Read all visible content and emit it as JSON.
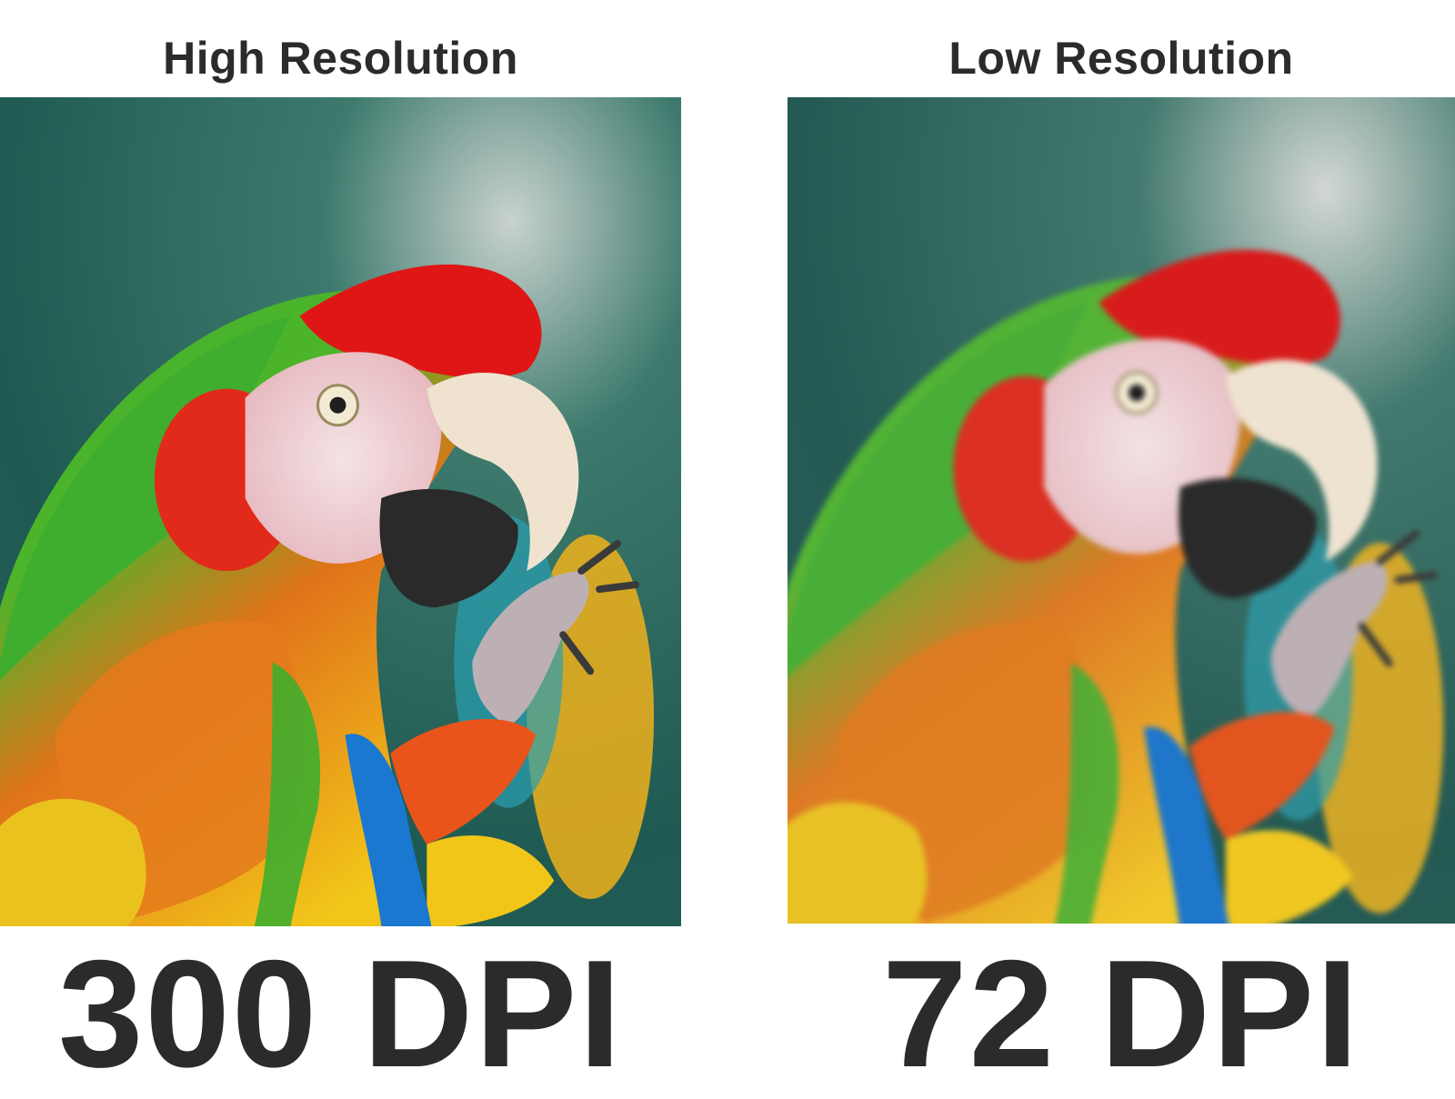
{
  "left": {
    "heading": "High Resolution",
    "dpi_label": "300 DPI"
  },
  "right": {
    "heading": "Low Resolution",
    "dpi_label": "72 DPI"
  },
  "colors": {
    "background_teal": "#1f5a52",
    "parrot_green": "#3fae2e",
    "parrot_red": "#e01616",
    "parrot_yellow": "#f2c619",
    "parrot_blue": "#1a78d0",
    "text": "#2b2b2b"
  }
}
